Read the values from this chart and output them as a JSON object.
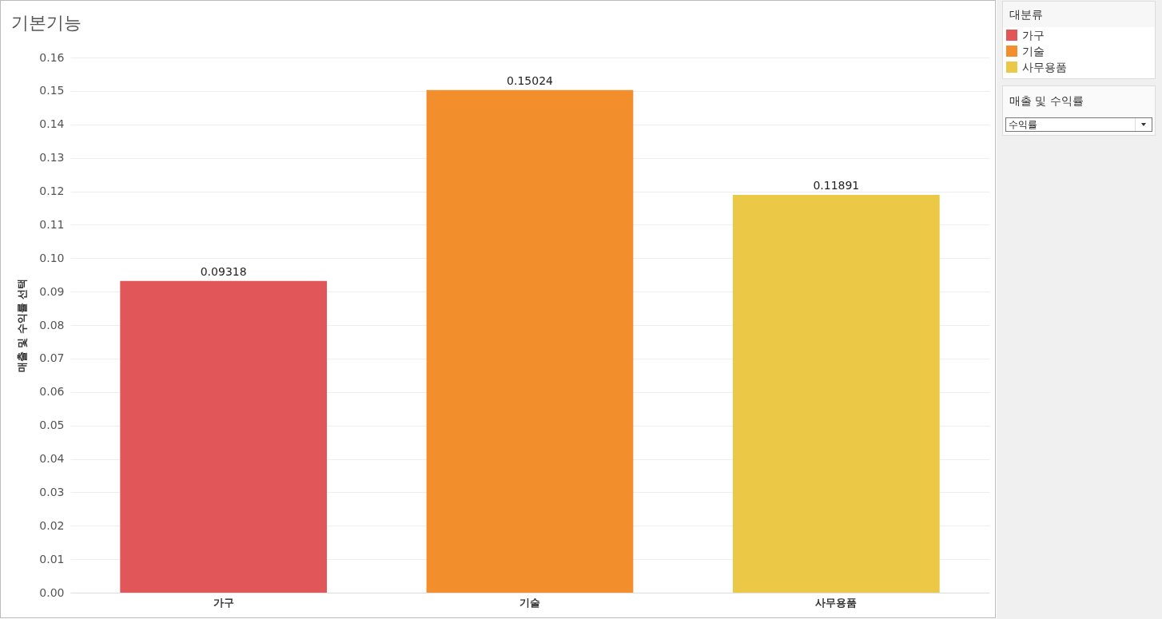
{
  "chart_data": {
    "type": "bar",
    "title": "기본기능",
    "ylabel": "매출 및 수익률 선택",
    "legend_title": "대분류",
    "categories": [
      "가구",
      "기술",
      "사무용품"
    ],
    "stacked": true,
    "series": [
      {
        "name": "가구",
        "color": "#e15759",
        "values": [
          0.09318,
          null,
          null
        ]
      },
      {
        "name": "기술",
        "color": "#f28e2b",
        "values": [
          null,
          0.15024,
          null
        ]
      },
      {
        "name": "사무용품",
        "color": "#ebc845",
        "values": [
          null,
          null,
          0.11891
        ]
      }
    ],
    "ylim": [
      0,
      0.16
    ],
    "yticks": [
      {
        "value": 0,
        "label": "0.00"
      },
      0.01,
      0.02,
      0.03,
      0.04,
      0.05,
      0.06,
      0.07,
      0.08,
      0.09,
      {
        "value": 0.1,
        "label": "0.10"
      },
      0.11,
      0.12,
      0.13,
      0.14,
      0.15,
      0.16
    ],
    "grid": "y",
    "legend": "top right",
    "data_labels": true,
    "annotations": [
      "매출 및 수익률",
      "수익률"
    ]
  }
}
